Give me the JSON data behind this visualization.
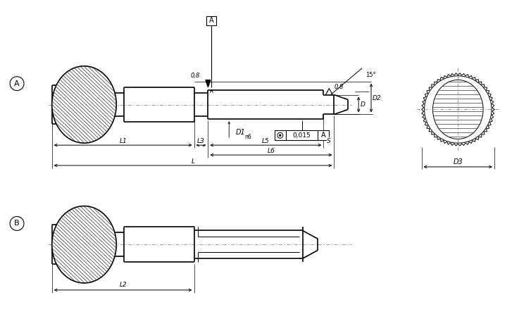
{
  "bg_color": "#ffffff",
  "lc": "#000000",
  "lw": 0.8,
  "lw_thick": 1.2,
  "labels": {
    "A": "A",
    "B": "B",
    "L1": "L1",
    "L2": "L2",
    "L3": "L3",
    "L5": "L5",
    "L6": "L6",
    "L": "L",
    "S": "S",
    "D": "D",
    "D1": "D1",
    "D1sub": "n6",
    "D2": "D2",
    "D3": "D3",
    "tol_val": "0,015",
    "tol_ref": "A",
    "ra1": "0,8",
    "ra2": "0,8",
    "angle": "15°",
    "datum_A": "A"
  },
  "fig_w": 7.27,
  "fig_h": 4.63
}
